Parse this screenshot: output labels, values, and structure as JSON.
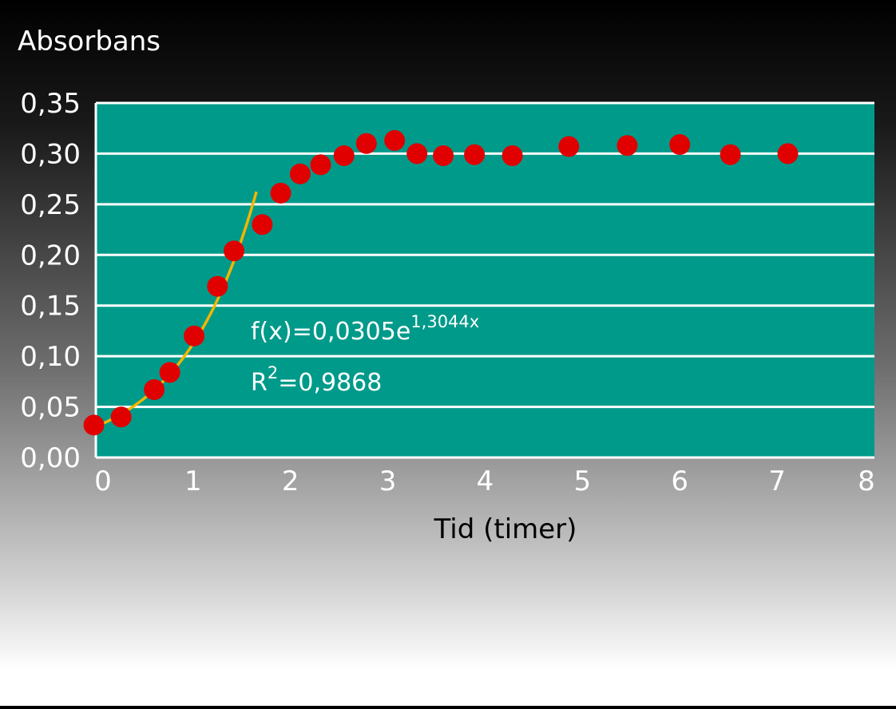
{
  "chart_data": {
    "type": "scatter",
    "title": "",
    "ylabel": "Absorbans",
    "xlabel": "Tid (timer)",
    "xlim": [
      0,
      8
    ],
    "ylim": [
      0,
      0.35
    ],
    "x_ticks": [
      "0",
      "1",
      "2",
      "3",
      "4",
      "5",
      "6",
      "7",
      "8"
    ],
    "y_ticks": [
      "0,00",
      "0,05",
      "0,10",
      "0,15",
      "0,20",
      "0,25",
      "0,30",
      "0,35"
    ],
    "grid": true,
    "colors": {
      "plot_background": "#009a8a",
      "point": "#e00000",
      "trendline": "#f2b600",
      "gridline": "#ffffff",
      "text": "#ffffff",
      "xlabel_text": "#000000"
    },
    "series": [
      {
        "points": [
          [
            -0.02,
            0.032
          ],
          [
            0.26,
            0.04
          ],
          [
            0.6,
            0.067
          ],
          [
            0.76,
            0.084
          ],
          [
            1.01,
            0.12
          ],
          [
            1.25,
            0.169
          ],
          [
            1.42,
            0.204
          ],
          [
            1.71,
            0.23
          ],
          [
            1.9,
            0.261
          ],
          [
            2.1,
            0.28
          ],
          [
            2.31,
            0.289
          ],
          [
            2.55,
            0.298
          ],
          [
            2.78,
            0.31
          ],
          [
            3.07,
            0.313
          ],
          [
            3.3,
            0.3
          ],
          [
            3.57,
            0.298
          ],
          [
            3.89,
            0.299
          ],
          [
            4.28,
            0.298
          ],
          [
            4.86,
            0.307
          ],
          [
            5.46,
            0.308
          ],
          [
            6.0,
            0.309
          ],
          [
            6.52,
            0.299
          ],
          [
            7.11,
            0.3
          ]
        ]
      }
    ],
    "trendline": {
      "type": "exponential",
      "a": 0.0305,
      "b": 1.3044,
      "x_range": [
        -0.02,
        1.65
      ],
      "equation_label": {
        "base": "f(x)=0,0305e",
        "exponent": "1,3044x"
      },
      "r2_label": {
        "prefix": "R",
        "power": "2",
        "value": "=0,9868"
      }
    }
  }
}
